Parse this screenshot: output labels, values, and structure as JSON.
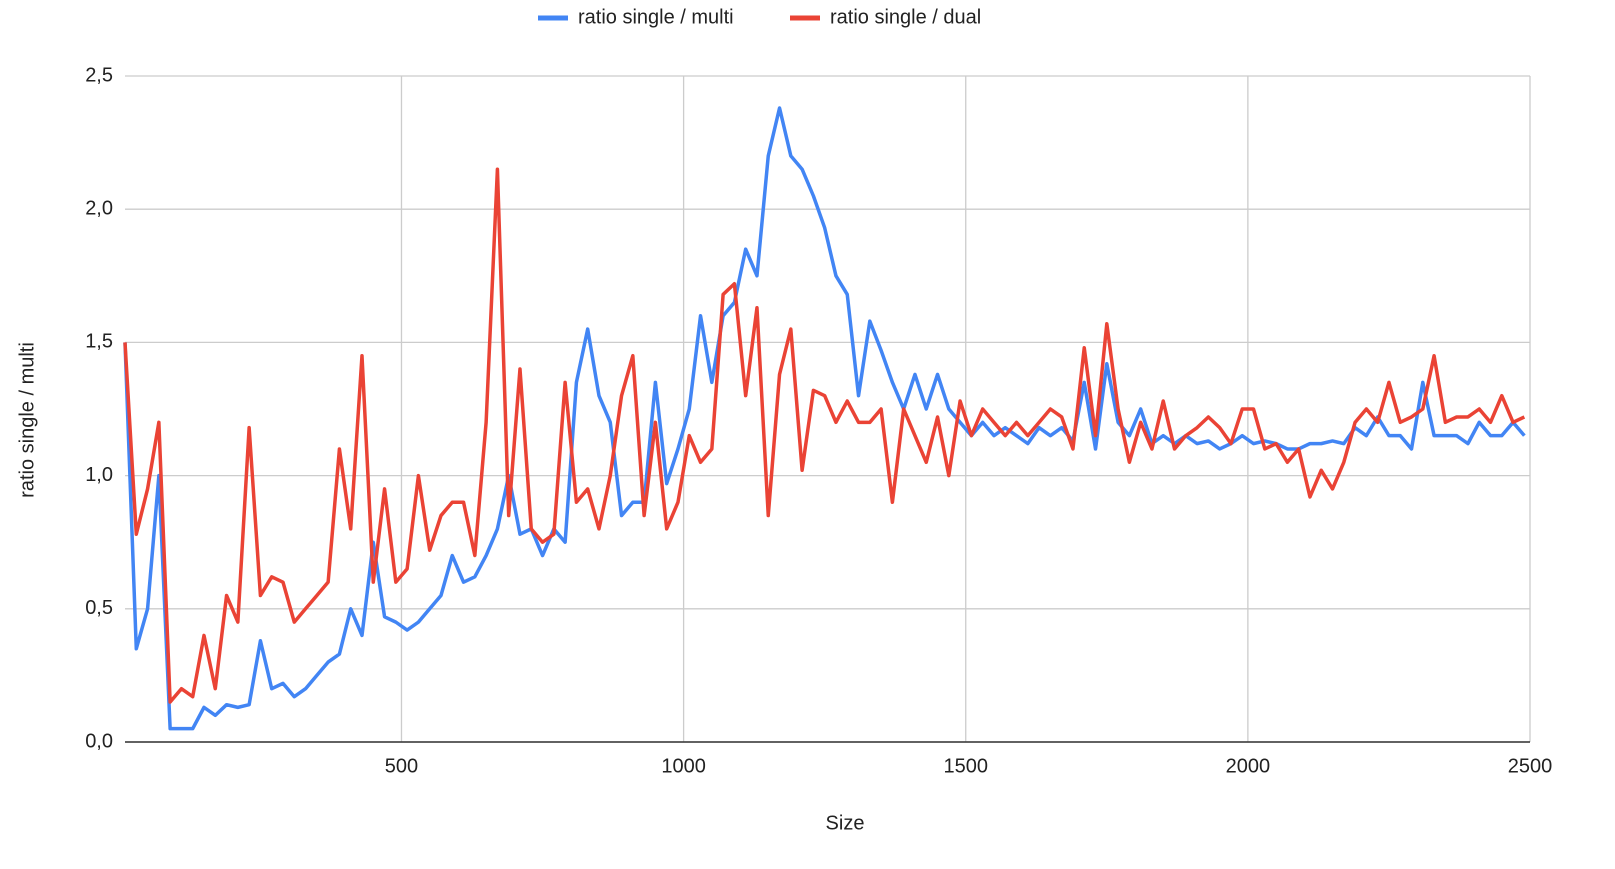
{
  "chart_data": {
    "type": "line",
    "x_label": "Size",
    "y_label": "ratio single / multi",
    "x": [
      10,
      30,
      50,
      70,
      90,
      110,
      130,
      150,
      170,
      190,
      210,
      230,
      250,
      270,
      290,
      310,
      330,
      350,
      370,
      390,
      410,
      430,
      450,
      470,
      490,
      510,
      530,
      550,
      570,
      590,
      610,
      630,
      650,
      670,
      690,
      710,
      730,
      750,
      770,
      790,
      810,
      830,
      850,
      870,
      890,
      910,
      930,
      950,
      970,
      990,
      1010,
      1030,
      1050,
      1070,
      1090,
      1110,
      1130,
      1150,
      1170,
      1190,
      1210,
      1230,
      1250,
      1270,
      1290,
      1310,
      1330,
      1350,
      1370,
      1390,
      1410,
      1430,
      1450,
      1470,
      1490,
      1510,
      1530,
      1550,
      1570,
      1590,
      1610,
      1630,
      1650,
      1670,
      1690,
      1710,
      1730,
      1750,
      1770,
      1790,
      1810,
      1830,
      1850,
      1870,
      1890,
      1910,
      1930,
      1950,
      1970,
      1990,
      2010,
      2030,
      2050,
      2070,
      2090,
      2110,
      2130,
      2150,
      2170,
      2190,
      2210,
      2230,
      2250,
      2270,
      2290,
      2310,
      2330,
      2350,
      2370,
      2390,
      2410,
      2430,
      2450,
      2470,
      2490
    ],
    "series": [
      {
        "name": "ratio single / multi",
        "color": "#4285f4",
        "values": [
          1.5,
          0.35,
          0.5,
          1.0,
          0.05,
          0.05,
          0.05,
          0.13,
          0.1,
          0.14,
          0.13,
          0.14,
          0.38,
          0.2,
          0.22,
          0.17,
          0.2,
          0.25,
          0.3,
          0.33,
          0.5,
          0.4,
          0.75,
          0.47,
          0.45,
          0.42,
          0.45,
          0.5,
          0.55,
          0.7,
          0.6,
          0.62,
          0.7,
          0.8,
          1.0,
          0.78,
          0.8,
          0.7,
          0.8,
          0.75,
          1.35,
          1.55,
          1.3,
          1.2,
          0.85,
          0.9,
          0.9,
          1.35,
          0.97,
          1.1,
          1.25,
          1.6,
          1.35,
          1.6,
          1.65,
          1.85,
          1.75,
          2.2,
          2.38,
          2.2,
          2.15,
          2.05,
          1.93,
          1.75,
          1.68,
          1.3,
          1.58,
          1.47,
          1.35,
          1.25,
          1.38,
          1.25,
          1.38,
          1.25,
          1.2,
          1.15,
          1.2,
          1.15,
          1.18,
          1.15,
          1.12,
          1.18,
          1.15,
          1.18,
          1.13,
          1.35,
          1.1,
          1.42,
          1.2,
          1.15,
          1.25,
          1.12,
          1.15,
          1.12,
          1.15,
          1.12,
          1.13,
          1.1,
          1.12,
          1.15,
          1.12,
          1.13,
          1.12,
          1.1,
          1.1,
          1.12,
          1.12,
          1.13,
          1.12,
          1.18,
          1.15,
          1.22,
          1.15,
          1.15,
          1.1,
          1.35,
          1.15,
          1.15,
          1.15,
          1.12,
          1.2,
          1.15,
          1.15,
          1.2,
          1.15
        ]
      },
      {
        "name": "ratio single / dual",
        "color": "#ea4335",
        "values": [
          1.5,
          0.78,
          0.95,
          1.2,
          0.15,
          0.2,
          0.17,
          0.4,
          0.2,
          0.55,
          0.45,
          1.18,
          0.55,
          0.62,
          0.6,
          0.45,
          0.5,
          0.55,
          0.6,
          1.1,
          0.8,
          1.45,
          0.6,
          0.95,
          0.6,
          0.65,
          1.0,
          0.72,
          0.85,
          0.9,
          0.9,
          0.7,
          1.2,
          2.15,
          0.85,
          1.4,
          0.8,
          0.75,
          0.78,
          1.35,
          0.9,
          0.95,
          0.8,
          1.0,
          1.3,
          1.45,
          0.85,
          1.2,
          0.8,
          0.9,
          1.15,
          1.05,
          1.1,
          1.68,
          1.72,
          1.3,
          1.63,
          0.85,
          1.38,
          1.55,
          1.02,
          1.32,
          1.3,
          1.2,
          1.28,
          1.2,
          1.2,
          1.25,
          0.9,
          1.25,
          1.15,
          1.05,
          1.22,
          1.0,
          1.28,
          1.15,
          1.25,
          1.2,
          1.15,
          1.2,
          1.15,
          1.2,
          1.25,
          1.22,
          1.1,
          1.48,
          1.15,
          1.57,
          1.25,
          1.05,
          1.2,
          1.1,
          1.28,
          1.1,
          1.15,
          1.18,
          1.22,
          1.18,
          1.12,
          1.25,
          1.25,
          1.1,
          1.12,
          1.05,
          1.1,
          0.92,
          1.02,
          0.95,
          1.05,
          1.2,
          1.25,
          1.2,
          1.35,
          1.2,
          1.22,
          1.25,
          1.45,
          1.2,
          1.22,
          1.22,
          1.25,
          1.2,
          1.3,
          1.2,
          1.22
        ]
      }
    ],
    "xlim": [
      10,
      2500
    ],
    "xticks": [
      500,
      1000,
      1500,
      2000,
      2500
    ],
    "ylim": [
      0,
      2.5
    ],
    "yticks": [
      {
        "value": 0,
        "label": "0,0"
      },
      {
        "value": 0.5,
        "label": "0,5"
      },
      {
        "value": 1,
        "label": "1,0"
      },
      {
        "value": 1.5,
        "label": "1,5"
      },
      {
        "value": 2,
        "label": "2,0"
      },
      {
        "value": 2.5,
        "label": "2,5"
      }
    ],
    "grid": true,
    "legend": "top"
  }
}
